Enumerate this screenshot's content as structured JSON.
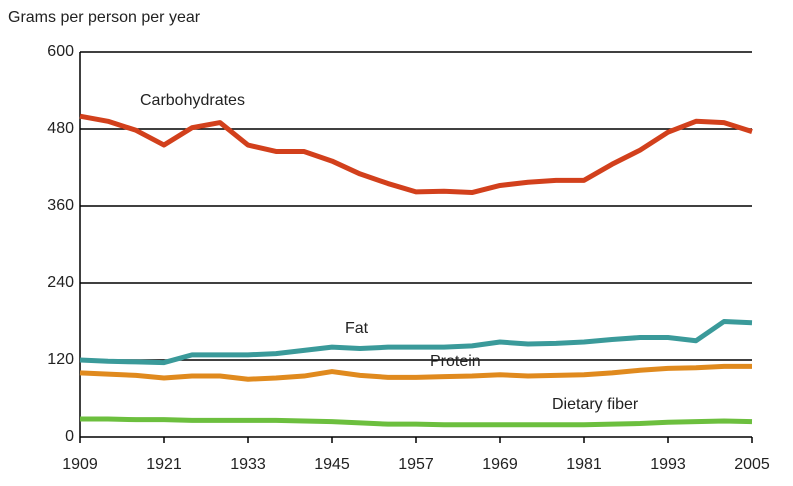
{
  "chart_data": {
    "type": "line",
    "ylabel": "Grams per person per year",
    "x": [
      1909,
      1913,
      1917,
      1921,
      1925,
      1929,
      1933,
      1937,
      1941,
      1945,
      1949,
      1953,
      1957,
      1961,
      1965,
      1969,
      1973,
      1977,
      1981,
      1985,
      1989,
      1993,
      1997,
      2001,
      2005
    ],
    "series": [
      {
        "name": "Carbohydrates",
        "color": "#d2401c",
        "values": [
          500,
          492,
          478,
          455,
          482,
          490,
          455,
          445,
          445,
          430,
          410,
          395,
          382,
          383,
          381,
          392,
          397,
          400,
          400,
          425,
          447,
          475,
          492,
          490,
          476
        ]
      },
      {
        "name": "Fat",
        "color": "#3a9a9a",
        "values": [
          120,
          118,
          117,
          116,
          128,
          128,
          128,
          130,
          135,
          140,
          138,
          140,
          140,
          140,
          142,
          148,
          145,
          146,
          148,
          152,
          155,
          155,
          150,
          180,
          178
        ]
      },
      {
        "name": "Protein",
        "color": "#e08a1e",
        "values": [
          100,
          98,
          96,
          92,
          95,
          95,
          90,
          92,
          95,
          102,
          96,
          93,
          93,
          94,
          95,
          97,
          95,
          96,
          97,
          100,
          104,
          107,
          108,
          110,
          110
        ]
      },
      {
        "name": "Dietary fiber",
        "color": "#6cbf3e",
        "values": [
          28,
          28,
          27,
          27,
          26,
          26,
          26,
          26,
          25,
          24,
          22,
          20,
          20,
          19,
          19,
          19,
          19,
          19,
          19,
          20,
          21,
          23,
          24,
          25,
          24
        ]
      }
    ],
    "xlim": [
      1909,
      2005
    ],
    "xticks": [
      1909,
      1921,
      1933,
      1945,
      1957,
      1969,
      1981,
      1993,
      2005
    ],
    "ylim": [
      0,
      600
    ],
    "yticks": [
      0,
      120,
      240,
      360,
      480,
      600
    ],
    "grid": true
  }
}
